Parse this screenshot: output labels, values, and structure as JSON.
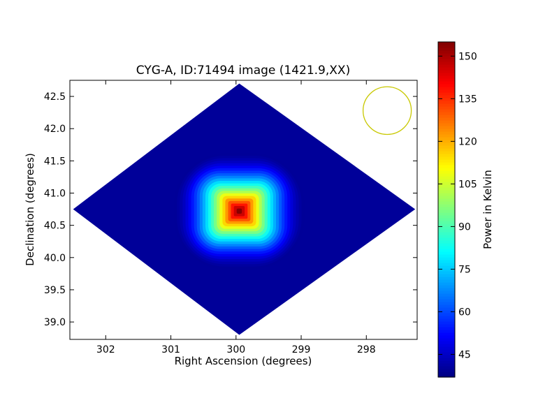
{
  "chart_data": {
    "type": "heatmap",
    "title": "CYG-A, ID:71494 image (1421.9,XX)",
    "xlabel": "Right Ascension (degrees)",
    "ylabel": "Declination (degrees)",
    "xlim": [
      302.55,
      297.22
    ],
    "ylim": [
      38.73,
      42.75
    ],
    "xticks": [
      302,
      301,
      300,
      299,
      298
    ],
    "xtick_labels": [
      "302",
      "301",
      "300",
      "299",
      "298"
    ],
    "yticks": [
      39.0,
      39.5,
      40.0,
      40.5,
      41.0,
      41.5,
      42.0,
      42.5
    ],
    "ytick_labels": [
      "39.0",
      "39.5",
      "40.0",
      "40.5",
      "41.0",
      "41.5",
      "42.0",
      "42.5"
    ],
    "colorbar": {
      "label": "Power in Kelvin",
      "colormap": "jet",
      "range": [
        37,
        155
      ],
      "ticks": [
        45,
        60,
        75,
        90,
        105,
        120,
        135,
        150
      ],
      "tick_labels": [
        "45",
        "60",
        "75",
        "90",
        "105",
        "120",
        "135",
        "150"
      ]
    },
    "map_footprint": {
      "center": [
        299.95,
        40.75
      ],
      "corners": [
        [
          302.5,
          40.75
        ],
        [
          299.95,
          42.7
        ],
        [
          297.25,
          40.75
        ],
        [
          299.95,
          38.8
        ]
      ],
      "background_level": 40
    },
    "peak": {
      "center": [
        299.95,
        40.72
      ],
      "value": 155,
      "core_half_width": [
        0.35,
        0.3
      ],
      "halo_half_width": [
        1.0,
        0.9
      ]
    },
    "beam_circle": {
      "center": [
        297.68,
        42.28
      ],
      "radius_deg": 0.37,
      "color": "#c8c800"
    }
  }
}
